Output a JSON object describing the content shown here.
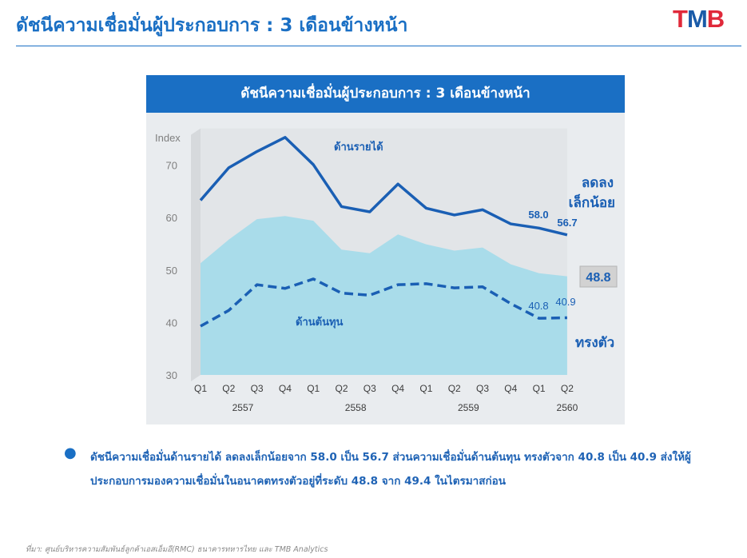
{
  "header": {
    "title": "ดัชนีความเชื่อมั่นผู้ประกอบการ : 3 เดือนข้างหน้า",
    "logo": {
      "t": "T",
      "m": "M",
      "b": "B"
    }
  },
  "chart_data": {
    "type": "line",
    "title": "ดัชนีความเชื่อมั่นผู้ประกอบการ : 3 เดือนข้างหน้า",
    "ylabel": "Index",
    "ylim": [
      30,
      77
    ],
    "yticks": [
      "70",
      "60",
      "50",
      "40",
      "30"
    ],
    "categories": [
      "Q1",
      "Q2",
      "Q3",
      "Q4",
      "Q1",
      "Q2",
      "Q3",
      "Q4",
      "Q1",
      "Q2",
      "Q3",
      "Q4",
      "Q1",
      "Q2"
    ],
    "year_groups": [
      {
        "label": "2557",
        "from": 0,
        "to": 3
      },
      {
        "label": "2558",
        "from": 4,
        "to": 7
      },
      {
        "label": "2559",
        "from": 8,
        "to": 11
      },
      {
        "label": "2560",
        "from": 12,
        "to": 13
      }
    ],
    "series": [
      {
        "name": "ด้านรายได้",
        "style": "solid",
        "color": "#1a5fb4",
        "values": [
          63.3,
          69.5,
          72.6,
          75.3,
          70.1,
          62.1,
          61.1,
          66.4,
          61.8,
          60.5,
          61.5,
          58.8,
          58.0,
          56.7
        ]
      },
      {
        "name": "ด้านต้นทุน",
        "style": "dashed",
        "color": "#1a5fb4",
        "values": [
          39.3,
          42.3,
          47.2,
          46.5,
          48.3,
          45.6,
          45.2,
          47.2,
          47.4,
          46.6,
          46.8,
          43.6,
          40.8,
          40.9
        ]
      },
      {
        "name": "",
        "style": "area",
        "color": "#a9dcea",
        "values": [
          51.3,
          55.8,
          59.7,
          60.3,
          59.4,
          53.9,
          53.2,
          56.8,
          54.9,
          53.7,
          54.3,
          51.1,
          49.4,
          48.8
        ]
      }
    ],
    "annotations": {
      "revenue_label": "ด้านรายได้",
      "cost_label": "ด้านต้นทุน",
      "revenue_trend": [
        "ลดลง",
        "เล็กน้อย"
      ],
      "cost_trend": "ทรงตัว",
      "area_last": "48.8",
      "revenue_prev": "58.0",
      "revenue_last": "56.7",
      "cost_prev": "40.8",
      "cost_last": "40.9"
    },
    "colors": {
      "axis_text": "#7f7f7f",
      "label_blue": "#1a5fb4",
      "callout_bg": "#d2d2d2"
    }
  },
  "bullet": {
    "text": "ดัชนีความเชื่อมั่นด้านรายได้ ลดลงเล็กน้อยจาก 58.0 เป็น 56.7 ส่วนความเชื่อมั่นด้านต้นทุน ทรงตัวจาก 40.8 เป็น 40.9 ส่งให้ผู้ประกอบการมองความเชื่อมั่นในอนาคตทรงตัวอยู่ที่ระดับ 48.8 จาก 49.4 ในไตรมาสก่อน"
  },
  "footer": {
    "source": "ที่มา: ศูนย์บริหารความสัมพันธ์ลูกค้าเอสเอ็มอี(RMC) ธนาคารทหารไทย และ TMB Analytics"
  }
}
